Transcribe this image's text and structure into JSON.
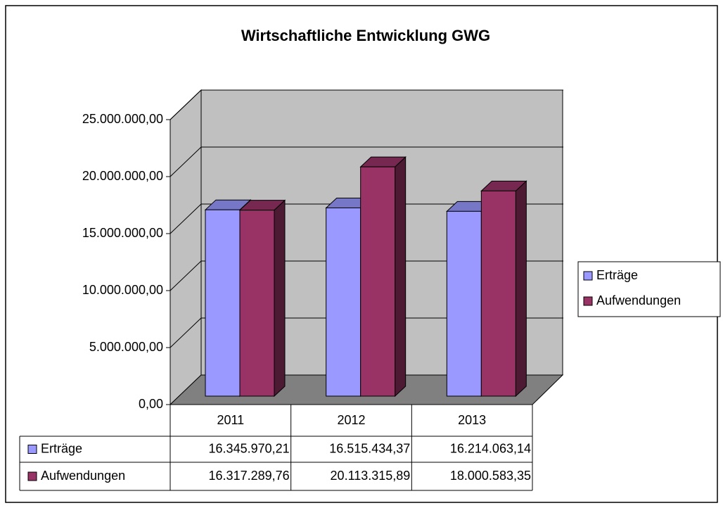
{
  "chart_data": {
    "type": "bar3d",
    "title": "Wirtschaftliche Entwicklung GWG",
    "categories": [
      "2011",
      "2012",
      "2013"
    ],
    "series": [
      {
        "name": "Erträge",
        "color": "#9999ff",
        "values": [
          16345970.21,
          16515434.37,
          16214063.14
        ],
        "value_labels": [
          "16.345.970,21",
          "16.515.434,37",
          "16.214.063,14"
        ]
      },
      {
        "name": "Aufwendungen",
        "color": "#993366",
        "values": [
          16317289.76,
          20113315.89,
          18000583.35
        ],
        "value_labels": [
          "16.317.289,76",
          "20.113.315,89",
          "18.000.583,35"
        ]
      }
    ],
    "ylim": [
      0,
      25000000
    ],
    "yticks": [
      {
        "value": 0,
        "label": "0,00"
      },
      {
        "value": 5000000,
        "label": "5.000.000,00"
      },
      {
        "value": 10000000,
        "label": "10.000.000,00"
      },
      {
        "value": 15000000,
        "label": "15.000.000,00"
      },
      {
        "value": 20000000,
        "label": "20.000.000,00"
      },
      {
        "value": 25000000,
        "label": "25.000.000,00"
      }
    ],
    "grid": true,
    "legend": "right"
  }
}
